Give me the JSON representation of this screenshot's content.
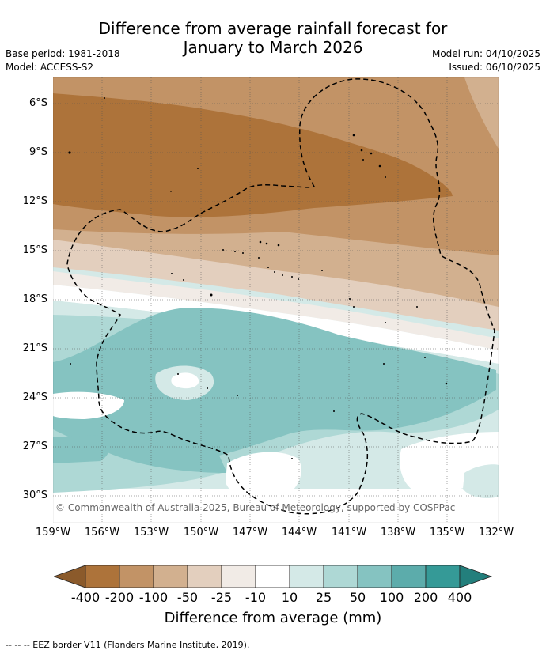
{
  "title": {
    "line1": "Difference from average rainfall forecast for",
    "line2": "January to March 2026"
  },
  "meta": {
    "base_period": "Base period: 1981-2018",
    "model": "Model: ACCESS-S2",
    "model_run": "Model run: 04/10/2025",
    "issued": "Issued: 06/10/2025"
  },
  "map": {
    "lat_labels": [
      "6°S",
      "9°S",
      "12°S",
      "15°S",
      "18°S",
      "21°S",
      "24°S",
      "27°S",
      "30°S"
    ],
    "lon_labels": [
      "159°W",
      "156°W",
      "153°W",
      "150°W",
      "147°W",
      "144°W",
      "141°W",
      "138°W",
      "135°W",
      "132°W"
    ],
    "copyright": "© Commonwealth of Australia 2025, Bureau of Meteorology, supported by COSPPac"
  },
  "colorbar": {
    "title": "Difference from average (mm)",
    "labels": [
      "-400",
      "-200",
      "-100",
      "-50",
      "-25",
      "-10",
      "10",
      "25",
      "50",
      "100",
      "200",
      "400"
    ],
    "colors": {
      "lt_400": "#8b5a2b",
      "m400_m200": "#ad733a",
      "m200_m100": "#c29366",
      "m100_m50": "#d2b08f",
      "m50_m25": "#e3cfbe",
      "m25_m10": "#f1ebe6",
      "m10_10": "#ffffff",
      "10_25": "#d4e9e7",
      "25_50": "#aed8d5",
      "50_100": "#85c3c1",
      "100_200": "#5cacab",
      "200_400": "#359a97",
      "gt_400": "#237f7c"
    }
  },
  "footnote": "-- -- -- EEZ border V11 (Flanders Marine Institute, 2019)."
}
